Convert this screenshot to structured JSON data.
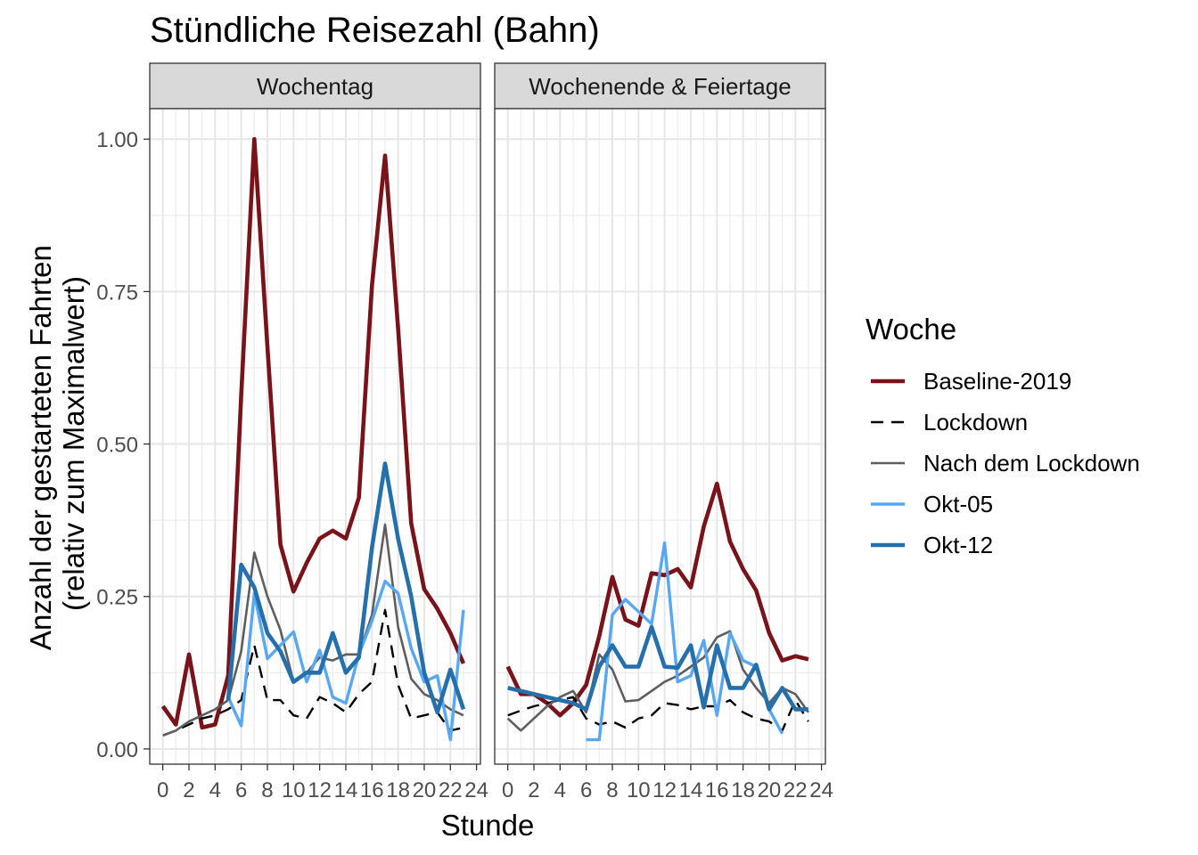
{
  "chart_data": {
    "type": "line",
    "title": "Stündliche Reisezahl (Bahn)",
    "xlabel": "Stunde",
    "ylabel_lines": [
      "Anzahl der gestarteten Fahrten",
      "(relativ zum Maximalwert)"
    ],
    "xlim": [
      -1.0,
      24.3
    ],
    "ylim": [
      -0.025,
      1.05
    ],
    "x_ticks": [
      0,
      2,
      4,
      6,
      8,
      10,
      12,
      14,
      16,
      18,
      20,
      22,
      24
    ],
    "x_tick_labels": [
      "0",
      "2",
      "4",
      "6",
      "8",
      "10",
      "12",
      "14",
      "16",
      "18",
      "20",
      "22",
      "24"
    ],
    "y_ticks": [
      0,
      0.25,
      0.5,
      0.75,
      1.0
    ],
    "y_tick_labels": [
      "0.00",
      "0.25",
      "0.50",
      "0.75",
      "1.00"
    ],
    "grid": true,
    "legend": {
      "title": "Woche",
      "position": "right",
      "entries": [
        "Baseline-2019",
        "Lockdown",
        "Nach dem Lockdown",
        "Okt-05",
        "Okt-12"
      ]
    },
    "series_styles": [
      {
        "name": "Baseline-2019",
        "color": "#7a1219",
        "width": 4.6,
        "dash": ""
      },
      {
        "name": "Lockdown",
        "color": "#000000",
        "width": 2.4,
        "dash": "14 9"
      },
      {
        "name": "Nach dem Lockdown",
        "color": "#5e5e5e",
        "width": 2.6,
        "dash": ""
      },
      {
        "name": "Okt-05",
        "color": "#56a8f5",
        "width": 3.4,
        "dash": ""
      },
      {
        "name": "Okt-12",
        "color": "#2470ad",
        "width": 4.6,
        "dash": ""
      }
    ],
    "panels": [
      {
        "label": "Wochentag",
        "series": [
          {
            "name": "Baseline-2019",
            "x": [
              0,
              1,
              2,
              3,
              4,
              5,
              6,
              7,
              8,
              9,
              10,
              11,
              12,
              13,
              14,
              15,
              16,
              17,
              18,
              19,
              20,
              21,
              22,
              23
            ],
            "values": [
              0.07,
              0.04,
              0.155,
              0.035,
              0.04,
              0.12,
              0.58,
              1.0,
              0.66,
              0.335,
              0.258,
              0.305,
              0.345,
              0.358,
              0.345,
              0.412,
              0.76,
              0.973,
              0.69,
              0.37,
              0.262,
              0.23,
              0.19,
              0.14
            ]
          },
          {
            "name": "Lockdown",
            "x": [
              0,
              1,
              2,
              3,
              4,
              5,
              6,
              7,
              8,
              9,
              10,
              11,
              12,
              13,
              14,
              15,
              16,
              17,
              18,
              19,
              20,
              21,
              22,
              23
            ],
            "values": [
              0.022,
              0.03,
              0.04,
              0.05,
              0.055,
              0.065,
              0.08,
              0.17,
              0.08,
              0.08,
              0.055,
              0.05,
              0.085,
              0.075,
              0.06,
              0.09,
              0.11,
              0.228,
              0.105,
              0.05,
              0.055,
              0.06,
              0.03,
              0.035
            ]
          },
          {
            "name": "Nach dem Lockdown",
            "x": [
              0,
              1,
              2,
              3,
              4,
              5,
              6,
              7,
              8,
              9,
              10,
              11,
              12,
              13,
              14,
              15,
              16,
              17,
              18,
              19,
              20,
              21,
              22,
              23
            ],
            "values": [
              0.022,
              0.03,
              0.045,
              0.055,
              0.065,
              0.08,
              0.16,
              0.322,
              0.25,
              0.195,
              0.11,
              0.125,
              0.15,
              0.145,
              0.155,
              0.155,
              0.22,
              0.368,
              0.2,
              0.115,
              0.09,
              0.08,
              0.065,
              0.055
            ]
          },
          {
            "name": "Okt-05",
            "x": [
              5,
              6,
              7,
              8,
              9,
              10,
              11,
              12,
              13,
              14,
              15,
              16,
              17,
              18,
              19,
              20,
              21,
              22,
              23
            ],
            "values": [
              0.085,
              0.038,
              0.255,
              0.148,
              0.17,
              0.192,
              0.11,
              0.162,
              0.085,
              0.075,
              0.155,
              0.21,
              0.275,
              0.255,
              0.165,
              0.11,
              0.12,
              0.015,
              0.228
            ]
          },
          {
            "name": "Okt-12",
            "x": [
              5,
              6,
              7,
              8,
              9,
              10,
              11,
              12,
              13,
              14,
              15,
              16,
              17,
              18,
              19,
              20,
              21,
              22,
              23
            ],
            "values": [
              0.08,
              0.302,
              0.265,
              0.19,
              0.16,
              0.11,
              0.125,
              0.125,
              0.19,
              0.125,
              0.15,
              0.33,
              0.468,
              0.345,
              0.25,
              0.125,
              0.06,
              0.13,
              0.065
            ]
          }
        ]
      },
      {
        "label": "Wochenende & Feiertage",
        "series": [
          {
            "name": "Baseline-2019",
            "x": [
              0,
              1,
              2,
              3,
              4,
              5,
              6,
              7,
              8,
              9,
              10,
              11,
              12,
              13,
              14,
              15,
              16,
              17,
              18,
              19,
              20,
              21,
              22,
              23
            ],
            "values": [
              0.135,
              0.09,
              0.09,
              0.075,
              0.055,
              0.075,
              0.105,
              0.185,
              0.282,
              0.212,
              0.202,
              0.288,
              0.285,
              0.295,
              0.265,
              0.365,
              0.435,
              0.34,
              0.295,
              0.26,
              0.19,
              0.145,
              0.152,
              0.147
            ]
          },
          {
            "name": "Lockdown",
            "x": [
              0,
              1,
              2,
              3,
              4,
              5,
              6,
              7,
              8,
              9,
              10,
              11,
              12,
              13,
              14,
              15,
              16,
              17,
              18,
              19,
              20,
              21,
              22,
              23
            ],
            "values": [
              0.055,
              0.063,
              0.07,
              0.075,
              0.08,
              0.085,
              0.05,
              0.04,
              0.045,
              0.035,
              0.05,
              0.055,
              0.075,
              0.072,
              0.065,
              0.07,
              0.07,
              0.08,
              0.06,
              0.05,
              0.045,
              0.03,
              0.08,
              0.045
            ]
          },
          {
            "name": "Nach dem Lockdown",
            "x": [
              0,
              1,
              2,
              3,
              4,
              5,
              6,
              7,
              8,
              9,
              10,
              11,
              12,
              13,
              14,
              15,
              16,
              17,
              18,
              19,
              20,
              21,
              22,
              23
            ],
            "values": [
              0.05,
              0.03,
              0.05,
              0.07,
              0.085,
              0.095,
              0.06,
              0.155,
              0.13,
              0.078,
              0.08,
              0.095,
              0.11,
              0.12,
              0.135,
              0.15,
              0.183,
              0.193,
              0.13,
              0.1,
              0.075,
              0.1,
              0.09,
              0.06
            ]
          },
          {
            "name": "Okt-05",
            "x": [
              6,
              7,
              8,
              9,
              10,
              11,
              12,
              13,
              14,
              15,
              16,
              17,
              18,
              19,
              20,
              21
            ],
            "values": [
              0.015,
              0.015,
              0.22,
              0.245,
              0.225,
              0.205,
              0.338,
              0.11,
              0.12,
              0.178,
              0.055,
              0.19,
              0.145,
              0.135,
              0.065,
              0.025
            ]
          },
          {
            "name": "Okt-12",
            "x": [
              0,
              1,
              2,
              3,
              4,
              5,
              6,
              7,
              8,
              9,
              10,
              11,
              12,
              13,
              14,
              15,
              16,
              17,
              18,
              19,
              20,
              21,
              22,
              23
            ],
            "values": [
              0.1,
              0.095,
              0.09,
              0.085,
              0.08,
              0.075,
              0.065,
              0.135,
              0.17,
              0.135,
              0.135,
              0.2,
              0.135,
              0.133,
              0.17,
              0.068,
              0.17,
              0.1,
              0.1,
              0.138,
              0.065,
              0.1,
              0.065,
              0.065
            ]
          }
        ]
      }
    ]
  }
}
